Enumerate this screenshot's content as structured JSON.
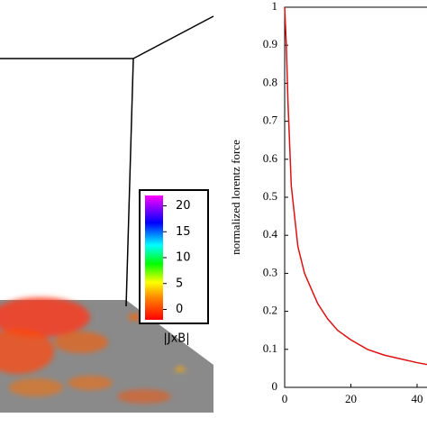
{
  "chart_data": [
    {
      "type": "line",
      "y_label": "normalized lorentz force",
      "x": [
        0,
        0.5,
        1,
        2,
        3,
        4,
        6,
        8,
        10,
        13,
        16,
        20,
        25,
        30,
        35,
        40,
        43
      ],
      "values": [
        1,
        0.9,
        0.75,
        0.53,
        0.45,
        0.37,
        0.3,
        0.26,
        0.22,
        0.18,
        0.15,
        0.125,
        0.1,
        0.085,
        0.075,
        0.065,
        0.06
      ],
      "color": "#dd1111",
      "xlim": [
        0,
        43
      ],
      "xticks": [
        0,
        20,
        40
      ],
      "ylim": [
        0,
        1
      ],
      "yticks": [
        0,
        0.1,
        0.2,
        0.3,
        0.4,
        0.5,
        0.6,
        0.7,
        0.8,
        0.9,
        1
      ]
    },
    {
      "type": "colorbar",
      "label": "|JxB|",
      "zlim": [
        -2,
        22
      ],
      "zticks": [
        0,
        5,
        10,
        15,
        20
      ]
    }
  ]
}
